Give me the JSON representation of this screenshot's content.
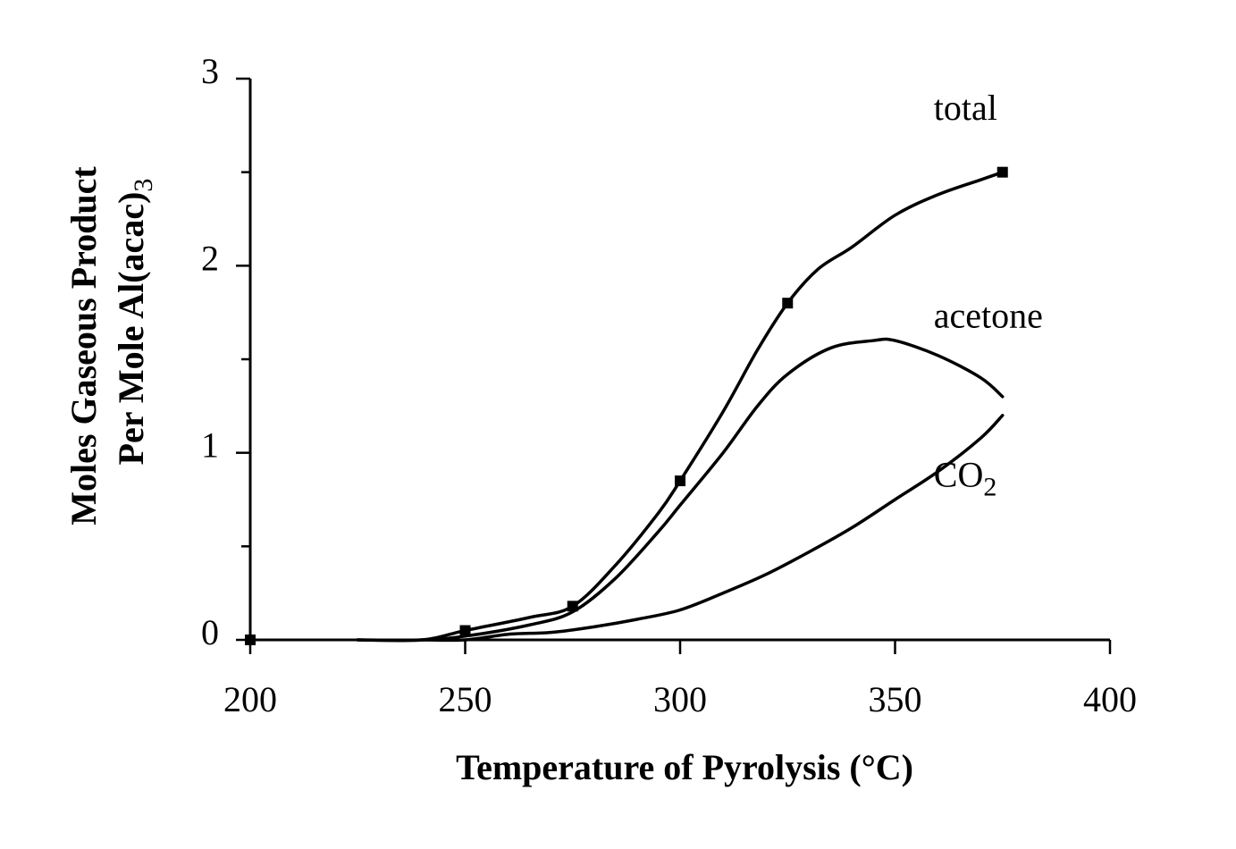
{
  "chart_data": {
    "type": "line",
    "xlabel": "Temperature of Pyrolysis (°C)",
    "ylabel_line1": "Moles Gaseous Product",
    "ylabel_line2_main": "Per Mole Al(acac)",
    "ylabel_line2_sub": "3",
    "xlim": [
      200,
      400
    ],
    "ylim": [
      0,
      3
    ],
    "xticks": [
      200,
      250,
      300,
      350,
      400
    ],
    "yticks": [
      0,
      1,
      2,
      3
    ],
    "x_tick_labels": [
      "200",
      "250",
      "300",
      "350",
      "400"
    ],
    "y_tick_labels": [
      "0",
      "1",
      "2",
      "3"
    ],
    "minor_y_step": 0.5,
    "grid": false,
    "series": [
      {
        "name": "total",
        "label": "total",
        "markers": [
          [
            200,
            0
          ],
          [
            250,
            0.05
          ],
          [
            275,
            0.18
          ],
          [
            300,
            0.85
          ],
          [
            325,
            1.8
          ],
          [
            375,
            2.5
          ]
        ],
        "curve": [
          [
            225,
            0.0
          ],
          [
            240,
            0.0
          ],
          [
            250,
            0.05
          ],
          [
            265,
            0.12
          ],
          [
            275,
            0.18
          ],
          [
            285,
            0.4
          ],
          [
            295,
            0.68
          ],
          [
            300,
            0.85
          ],
          [
            310,
            1.22
          ],
          [
            318,
            1.55
          ],
          [
            325,
            1.8
          ],
          [
            332,
            1.98
          ],
          [
            340,
            2.1
          ],
          [
            350,
            2.27
          ],
          [
            360,
            2.38
          ],
          [
            370,
            2.46
          ],
          [
            375,
            2.5
          ]
        ]
      },
      {
        "name": "acetone",
        "label": "acetone",
        "curve": [
          [
            225,
            0.0
          ],
          [
            240,
            0.0
          ],
          [
            250,
            0.02
          ],
          [
            265,
            0.08
          ],
          [
            275,
            0.15
          ],
          [
            285,
            0.33
          ],
          [
            295,
            0.58
          ],
          [
            300,
            0.72
          ],
          [
            310,
            1.0
          ],
          [
            318,
            1.25
          ],
          [
            325,
            1.42
          ],
          [
            335,
            1.56
          ],
          [
            345,
            1.6
          ],
          [
            350,
            1.6
          ],
          [
            360,
            1.52
          ],
          [
            370,
            1.4
          ],
          [
            375,
            1.3
          ]
        ]
      },
      {
        "name": "CO2",
        "label_main": "CO",
        "label_sub": "2",
        "curve": [
          [
            240,
            0.0
          ],
          [
            250,
            0.0
          ],
          [
            260,
            0.03
          ],
          [
            270,
            0.04
          ],
          [
            280,
            0.07
          ],
          [
            290,
            0.11
          ],
          [
            300,
            0.16
          ],
          [
            310,
            0.25
          ],
          [
            320,
            0.35
          ],
          [
            330,
            0.47
          ],
          [
            340,
            0.6
          ],
          [
            350,
            0.75
          ],
          [
            360,
            0.9
          ],
          [
            370,
            1.08
          ],
          [
            375,
            1.2
          ]
        ]
      }
    ],
    "label_positions": {
      "total": [
        359,
        2.78
      ],
      "acetone": [
        359,
        1.67
      ],
      "CO2": [
        359,
        0.82
      ]
    }
  }
}
